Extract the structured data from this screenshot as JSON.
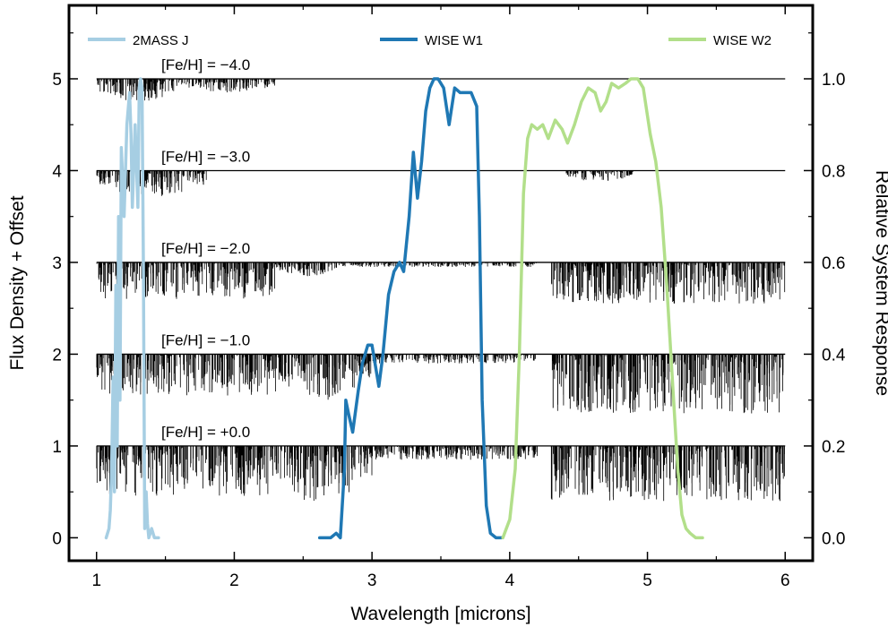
{
  "chart_data": {
    "type": "line",
    "xlabel": "Wavelength  [microns]",
    "ylabel": "Flux Density + Offset",
    "y2label": "Relative System Response",
    "xlim": [
      0.8,
      6.2
    ],
    "ylim": [
      -0.25,
      5.8
    ],
    "y2lim": [
      -0.05,
      1.16
    ],
    "xticks": [
      "1",
      "2",
      "3",
      "4",
      "5",
      "6"
    ],
    "yticks": [
      "0",
      "1",
      "2",
      "3",
      "4",
      "5"
    ],
    "y2ticks": [
      "0.0",
      "0.2",
      "0.4",
      "0.6",
      "0.8",
      "1.0"
    ],
    "grid": false,
    "legend_position": "top",
    "spectra": [
      {
        "label": "[Fe/H] = −4.0",
        "offset": 5,
        "color": "#000000",
        "absorption_regions": [
          [
            1.0,
            1.6,
            0.25
          ],
          [
            1.6,
            2.3,
            0.15
          ]
        ]
      },
      {
        "label": "[Fe/H] = −3.0",
        "offset": 4,
        "color": "#000000",
        "absorption_regions": [
          [
            1.0,
            1.8,
            0.3
          ],
          [
            4.4,
            4.9,
            0.12
          ]
        ]
      },
      {
        "label": "[Fe/H] = −2.0",
        "offset": 3,
        "color": "#000000",
        "absorption_regions": [
          [
            1.0,
            2.3,
            0.4
          ],
          [
            2.3,
            2.75,
            0.15
          ],
          [
            2.75,
            4.2,
            0.05
          ],
          [
            4.3,
            6.0,
            0.45
          ]
        ]
      },
      {
        "label": "[Fe/H] = −1.0",
        "offset": 2,
        "color": "#000000",
        "absorption_regions": [
          [
            1.0,
            2.3,
            0.45
          ],
          [
            2.3,
            3.0,
            0.5
          ],
          [
            3.0,
            4.2,
            0.1
          ],
          [
            4.3,
            6.0,
            0.65
          ]
        ]
      },
      {
        "label": "[Fe/H] = +0.0",
        "offset": 1,
        "color": "#000000",
        "absorption_regions": [
          [
            1.0,
            2.3,
            0.55
          ],
          [
            2.3,
            3.0,
            0.65
          ],
          [
            3.0,
            4.2,
            0.15
          ],
          [
            4.3,
            6.0,
            0.6
          ]
        ]
      }
    ],
    "series": [
      {
        "name": "2MASS J",
        "color": "#a6cee3",
        "x": [
          1.07,
          1.09,
          1.1,
          1.11,
          1.12,
          1.13,
          1.14,
          1.15,
          1.16,
          1.17,
          1.18,
          1.19,
          1.2,
          1.22,
          1.24,
          1.25,
          1.26,
          1.28,
          1.3,
          1.31,
          1.32,
          1.33,
          1.34,
          1.35,
          1.36,
          1.37,
          1.38,
          1.4,
          1.42,
          1.45
        ],
        "y": [
          0.0,
          0.02,
          0.06,
          0.15,
          0.35,
          0.1,
          0.55,
          0.2,
          0.7,
          0.3,
          0.85,
          0.78,
          0.7,
          0.9,
          0.97,
          0.88,
          0.72,
          0.9,
          0.72,
          0.98,
          1.0,
          0.98,
          0.6,
          0.02,
          0.1,
          0.03,
          0.0,
          0.02,
          0.0,
          0.0
        ]
      },
      {
        "name": "WISE W1",
        "color": "#1f78b4",
        "x": [
          2.62,
          2.7,
          2.74,
          2.77,
          2.8,
          2.81,
          2.83,
          2.86,
          2.9,
          2.93,
          2.97,
          3.0,
          3.05,
          3.08,
          3.12,
          3.16,
          3.2,
          3.23,
          3.27,
          3.3,
          3.33,
          3.36,
          3.39,
          3.42,
          3.45,
          3.48,
          3.52,
          3.56,
          3.6,
          3.64,
          3.68,
          3.72,
          3.76,
          3.78,
          3.8,
          3.83,
          3.86,
          3.9,
          3.94
        ],
        "y": [
          0.0,
          0.0,
          0.01,
          0.0,
          0.15,
          0.3,
          0.27,
          0.23,
          0.32,
          0.38,
          0.42,
          0.42,
          0.33,
          0.4,
          0.53,
          0.58,
          0.6,
          0.58,
          0.7,
          0.84,
          0.74,
          0.82,
          0.93,
          0.98,
          1.0,
          1.0,
          0.98,
          0.9,
          0.98,
          0.97,
          0.97,
          0.97,
          0.94,
          0.7,
          0.3,
          0.07,
          0.01,
          0.0,
          0.0
        ]
      },
      {
        "name": "WISE W2",
        "color": "#b2df8a",
        "x": [
          3.95,
          4.0,
          4.04,
          4.07,
          4.1,
          4.13,
          4.16,
          4.2,
          4.24,
          4.28,
          4.33,
          4.38,
          4.42,
          4.47,
          4.52,
          4.57,
          4.62,
          4.66,
          4.7,
          4.74,
          4.79,
          4.84,
          4.88,
          4.93,
          4.97,
          5.02,
          5.06,
          5.1,
          5.14,
          5.18,
          5.22,
          5.25,
          5.28,
          5.31,
          5.35,
          5.4
        ],
        "y": [
          0.0,
          0.04,
          0.15,
          0.4,
          0.75,
          0.87,
          0.9,
          0.89,
          0.9,
          0.87,
          0.91,
          0.89,
          0.86,
          0.9,
          0.95,
          0.98,
          0.97,
          0.93,
          0.95,
          0.99,
          0.98,
          0.99,
          1.0,
          1.0,
          0.98,
          0.88,
          0.82,
          0.72,
          0.55,
          0.35,
          0.15,
          0.05,
          0.02,
          0.01,
          0.0,
          0.0
        ]
      }
    ]
  }
}
